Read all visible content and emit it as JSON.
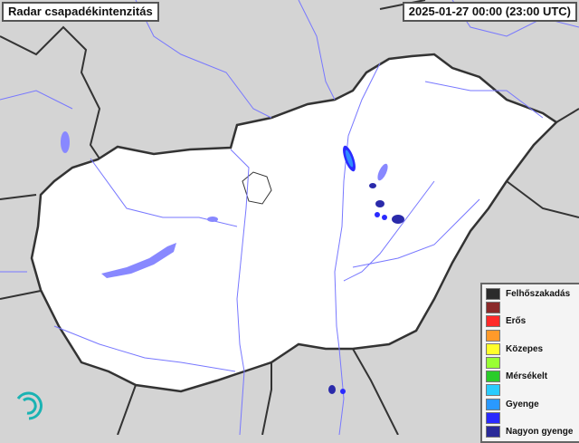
{
  "title": "Radar csapadékintenzitás",
  "timestamp": "2025-01-27 00:00 (23:00 UTC)",
  "colors": {
    "background": "#d4d4d4",
    "country": "#ffffff",
    "border": "#333333",
    "river": "#7777ff",
    "rain_strong": "#2a2aff",
    "rain_light": "#2f8cff"
  },
  "legend": [
    {
      "label": "Felhőszakadás",
      "color": "#2b2b2b"
    },
    {
      "label": "",
      "color": "#8b2a2a"
    },
    {
      "label": "Erős",
      "color": "#ff2a2a"
    },
    {
      "label": "",
      "color": "#ff9a2a"
    },
    {
      "label": "Közepes",
      "color": "#ffff2a"
    },
    {
      "label": "",
      "color": "#99ff33"
    },
    {
      "label": "Mérsékelt",
      "color": "#2acc2a"
    },
    {
      "label": "",
      "color": "#2accff"
    },
    {
      "label": "Gyenge",
      "color": "#2a99ff"
    },
    {
      "label": "",
      "color": "#2a2aff"
    },
    {
      "label": "Nagyon gyenge",
      "color": "#2a2a99"
    }
  ],
  "logo_icon": "met-service-spiral-logo"
}
